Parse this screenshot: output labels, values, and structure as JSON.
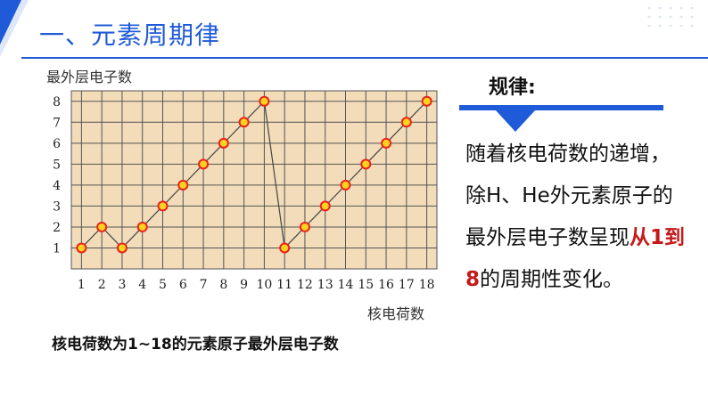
{
  "slide": {
    "title": "一、元素周期律",
    "caption": "核电荷数为1~18的元素原子最外层电子数",
    "rule_label": "规律:",
    "rule_text_before": "随着核电荷数的递增，除H、He外元素原子的最外层电子数呈现",
    "rule_text_highlight": "从1到8",
    "rule_text_after": "的周期性变化。"
  },
  "colors": {
    "accent": "#1f5bd8",
    "highlight": "#c41a1a",
    "chart_background": "#f2dcb9",
    "marker_fill": "#ffd21f",
    "marker_stroke": "#e8231c"
  },
  "chart_data": {
    "type": "line",
    "ylabel": "最外层电子数",
    "xlabel": "核电荷数",
    "x": [
      1,
      2,
      3,
      4,
      5,
      6,
      7,
      8,
      9,
      10,
      11,
      12,
      13,
      14,
      15,
      16,
      17,
      18
    ],
    "y": [
      1,
      2,
      1,
      2,
      3,
      4,
      5,
      6,
      7,
      8,
      1,
      2,
      3,
      4,
      5,
      6,
      7,
      8
    ],
    "x_ticks": [
      "1",
      "2",
      "3",
      "4",
      "5",
      "6",
      "7",
      "8",
      "9",
      "10",
      "11",
      "12",
      "13",
      "14",
      "15",
      "16",
      "17",
      "18"
    ],
    "y_ticks": [
      "1",
      "2",
      "3",
      "4",
      "5",
      "6",
      "7",
      "8"
    ],
    "xlim": [
      0.5,
      18.5
    ],
    "ylim": [
      0,
      8.5
    ],
    "grid": true
  }
}
